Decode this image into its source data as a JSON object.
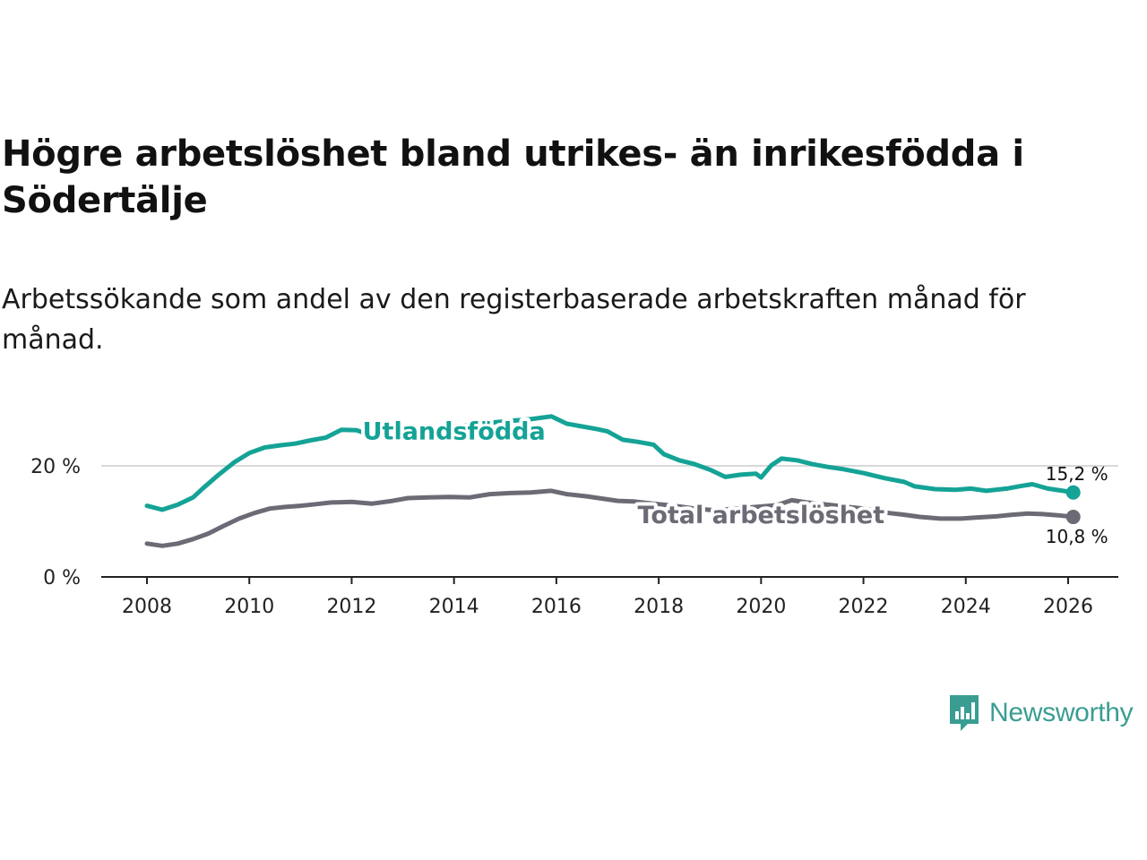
{
  "title": "Högre arbetslöshet bland utrikes- än inrikesfödda i Södertälje",
  "subtitle": "Arbetssökande som andel av den registerbaserade arbetskraften månad för månad.",
  "brand": {
    "name": "Newsworthy",
    "icon": "newsworthy-logo-icon",
    "color": "#3a9d92"
  },
  "chart_data": {
    "type": "line",
    "x_unit": "year",
    "xlim": [
      2007.1,
      2027.0
    ],
    "ylim": [
      0,
      28
    ],
    "xticks": [
      2008,
      2010,
      2012,
      2014,
      2016,
      2018,
      2020,
      2022,
      2024,
      2026
    ],
    "ytick_labels": [
      {
        "value": 0,
        "label": "0 %"
      },
      {
        "value": 20,
        "label": "20 %"
      }
    ],
    "gridlines": [
      20
    ],
    "series": [
      {
        "name": "Utlandsfödda",
        "color": "#14a396",
        "end_label": "15,2 %",
        "points": [
          [
            2008.0,
            12.8
          ],
          [
            2008.3,
            12.1
          ],
          [
            2008.6,
            13.0
          ],
          [
            2008.9,
            14.3
          ],
          [
            2009.1,
            16.0
          ],
          [
            2009.4,
            18.4
          ],
          [
            2009.7,
            20.6
          ],
          [
            2010.0,
            22.3
          ],
          [
            2010.3,
            23.3
          ],
          [
            2010.6,
            23.7
          ],
          [
            2010.9,
            24.0
          ],
          [
            2011.2,
            24.6
          ],
          [
            2011.5,
            25.1
          ],
          [
            2011.8,
            26.5
          ],
          [
            2012.1,
            26.4
          ],
          [
            2012.4,
            25.4
          ],
          [
            2012.7,
            25.6
          ],
          [
            2013.0,
            25.9
          ],
          [
            2013.5,
            26.5
          ],
          [
            2014.0,
            27.1
          ],
          [
            2014.5,
            27.6
          ],
          [
            2015.0,
            28.0
          ],
          [
            2015.5,
            28.4
          ],
          [
            2015.9,
            28.9
          ],
          [
            2016.2,
            27.6
          ],
          [
            2016.5,
            27.1
          ],
          [
            2016.8,
            26.6
          ],
          [
            2017.0,
            26.2
          ],
          [
            2017.3,
            24.7
          ],
          [
            2017.6,
            24.3
          ],
          [
            2017.9,
            23.8
          ],
          [
            2018.1,
            22.1
          ],
          [
            2018.4,
            21.0
          ],
          [
            2018.7,
            20.3
          ],
          [
            2019.0,
            19.3
          ],
          [
            2019.3,
            18.0
          ],
          [
            2019.6,
            18.4
          ],
          [
            2019.9,
            18.6
          ],
          [
            2020.0,
            17.9
          ],
          [
            2020.2,
            20.1
          ],
          [
            2020.4,
            21.3
          ],
          [
            2020.7,
            21.0
          ],
          [
            2021.0,
            20.3
          ],
          [
            2021.3,
            19.8
          ],
          [
            2021.6,
            19.4
          ],
          [
            2022.0,
            18.7
          ],
          [
            2022.4,
            17.8
          ],
          [
            2022.8,
            17.1
          ],
          [
            2023.0,
            16.3
          ],
          [
            2023.4,
            15.8
          ],
          [
            2023.8,
            15.7
          ],
          [
            2024.1,
            15.9
          ],
          [
            2024.4,
            15.5
          ],
          [
            2024.8,
            15.9
          ],
          [
            2025.1,
            16.4
          ],
          [
            2025.3,
            16.7
          ],
          [
            2025.6,
            15.9
          ],
          [
            2025.9,
            15.5
          ],
          [
            2026.1,
            15.2
          ]
        ]
      },
      {
        "name": "Total arbetslöshet",
        "color": "#6c6a74",
        "end_label": "10,8 %",
        "points": [
          [
            2008.0,
            6.0
          ],
          [
            2008.3,
            5.6
          ],
          [
            2008.6,
            6.0
          ],
          [
            2008.9,
            6.8
          ],
          [
            2009.2,
            7.8
          ],
          [
            2009.5,
            9.2
          ],
          [
            2009.8,
            10.5
          ],
          [
            2010.1,
            11.5
          ],
          [
            2010.4,
            12.3
          ],
          [
            2010.7,
            12.6
          ],
          [
            2011.0,
            12.8
          ],
          [
            2011.3,
            13.1
          ],
          [
            2011.6,
            13.4
          ],
          [
            2012.0,
            13.5
          ],
          [
            2012.4,
            13.2
          ],
          [
            2012.8,
            13.7
          ],
          [
            2013.1,
            14.2
          ],
          [
            2013.5,
            14.3
          ],
          [
            2013.9,
            14.4
          ],
          [
            2014.3,
            14.3
          ],
          [
            2014.7,
            14.9
          ],
          [
            2015.1,
            15.1
          ],
          [
            2015.5,
            15.2
          ],
          [
            2015.9,
            15.5
          ],
          [
            2016.2,
            14.9
          ],
          [
            2016.6,
            14.5
          ],
          [
            2016.9,
            14.1
          ],
          [
            2017.2,
            13.7
          ],
          [
            2017.5,
            13.6
          ],
          [
            2017.9,
            13.2
          ],
          [
            2018.3,
            12.8
          ],
          [
            2018.7,
            12.3
          ],
          [
            2019.1,
            12.0
          ],
          [
            2019.5,
            12.3
          ],
          [
            2019.9,
            12.6
          ],
          [
            2020.3,
            12.9
          ],
          [
            2020.6,
            13.8
          ],
          [
            2020.9,
            13.4
          ],
          [
            2021.3,
            13.0
          ],
          [
            2021.7,
            12.6
          ],
          [
            2022.1,
            12.2
          ],
          [
            2022.5,
            11.5
          ],
          [
            2022.8,
            11.2
          ],
          [
            2023.1,
            10.8
          ],
          [
            2023.5,
            10.5
          ],
          [
            2023.9,
            10.5
          ],
          [
            2024.2,
            10.7
          ],
          [
            2024.6,
            10.9
          ],
          [
            2024.9,
            11.2
          ],
          [
            2025.2,
            11.4
          ],
          [
            2025.5,
            11.3
          ],
          [
            2025.8,
            11.1
          ],
          [
            2026.1,
            10.8
          ]
        ]
      }
    ],
    "annotations": [
      {
        "text": "Utlandsfödda",
        "series": "Utlandsfödda",
        "x": 2014.0,
        "y": 26.4,
        "color": "#14a396"
      },
      {
        "text": "Total arbetslöshet",
        "series": "Total arbetslöshet",
        "x": 2020.0,
        "y": 11.3,
        "color": "#6c6a74"
      }
    ]
  }
}
